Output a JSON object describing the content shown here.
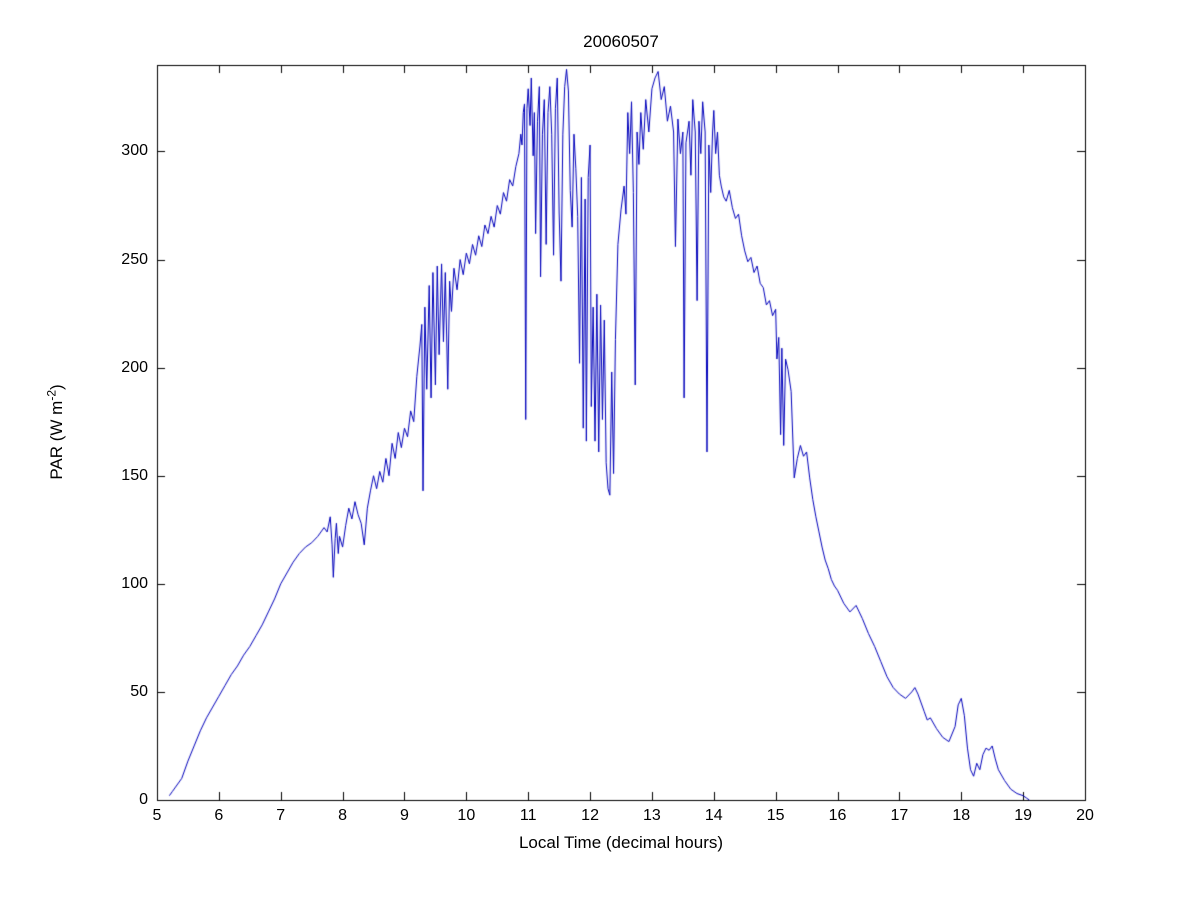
{
  "figure": {
    "title": "20060507",
    "xlabel": "Local Time (decimal hours)",
    "ylabel_pre": "PAR (W m",
    "ylabel_sup": "-2",
    "ylabel_post": ")"
  },
  "chart_data": {
    "type": "line",
    "title": "20060507",
    "xlabel": "Local Time (decimal hours)",
    "ylabel": "PAR (W m^-2)",
    "xlim": [
      5,
      20
    ],
    "ylim": [
      0,
      340
    ],
    "xticks": [
      5,
      6,
      7,
      8,
      9,
      10,
      11,
      12,
      13,
      14,
      15,
      16,
      17,
      18,
      19,
      20
    ],
    "yticks": [
      0,
      50,
      100,
      150,
      200,
      250,
      300
    ],
    "grid": false,
    "legend": false,
    "line_color": "#0000bb",
    "axis_color": "#000000",
    "background_color": "#ffffff",
    "series": [
      {
        "name": "PAR",
        "points": [
          [
            5.2,
            2
          ],
          [
            5.25,
            4
          ],
          [
            5.3,
            6
          ],
          [
            5.4,
            10
          ],
          [
            5.5,
            18
          ],
          [
            5.6,
            25
          ],
          [
            5.7,
            32
          ],
          [
            5.8,
            38
          ],
          [
            5.9,
            43
          ],
          [
            6.0,
            48
          ],
          [
            6.1,
            53
          ],
          [
            6.2,
            58
          ],
          [
            6.3,
            62
          ],
          [
            6.4,
            67
          ],
          [
            6.5,
            71
          ],
          [
            6.6,
            76
          ],
          [
            6.7,
            81
          ],
          [
            6.8,
            87
          ],
          [
            6.9,
            93
          ],
          [
            7.0,
            100
          ],
          [
            7.1,
            105
          ],
          [
            7.2,
            110
          ],
          [
            7.3,
            114
          ],
          [
            7.4,
            117
          ],
          [
            7.5,
            119
          ],
          [
            7.6,
            122
          ],
          [
            7.7,
            126
          ],
          [
            7.75,
            124
          ],
          [
            7.8,
            131
          ],
          [
            7.83,
            118
          ],
          [
            7.85,
            103
          ],
          [
            7.88,
            121
          ],
          [
            7.9,
            128
          ],
          [
            7.93,
            114
          ],
          [
            7.95,
            122
          ],
          [
            8.0,
            117
          ],
          [
            8.05,
            127
          ],
          [
            8.1,
            135
          ],
          [
            8.15,
            130
          ],
          [
            8.2,
            138
          ],
          [
            8.25,
            132
          ],
          [
            8.3,
            128
          ],
          [
            8.35,
            118
          ],
          [
            8.4,
            135
          ],
          [
            8.45,
            143
          ],
          [
            8.5,
            150
          ],
          [
            8.55,
            144
          ],
          [
            8.6,
            152
          ],
          [
            8.65,
            147
          ],
          [
            8.7,
            158
          ],
          [
            8.75,
            150
          ],
          [
            8.8,
            165
          ],
          [
            8.85,
            158
          ],
          [
            8.9,
            170
          ],
          [
            8.95,
            163
          ],
          [
            9.0,
            172
          ],
          [
            9.05,
            168
          ],
          [
            9.1,
            180
          ],
          [
            9.15,
            175
          ],
          [
            9.2,
            196
          ],
          [
            9.25,
            210
          ],
          [
            9.28,
            220
          ],
          [
            9.3,
            143
          ],
          [
            9.33,
            228
          ],
          [
            9.36,
            190
          ],
          [
            9.4,
            238
          ],
          [
            9.43,
            186
          ],
          [
            9.46,
            244
          ],
          [
            9.5,
            192
          ],
          [
            9.53,
            247
          ],
          [
            9.56,
            206
          ],
          [
            9.6,
            248
          ],
          [
            9.63,
            212
          ],
          [
            9.66,
            244
          ],
          [
            9.7,
            190
          ],
          [
            9.73,
            240
          ],
          [
            9.76,
            226
          ],
          [
            9.8,
            246
          ],
          [
            9.85,
            236
          ],
          [
            9.9,
            250
          ],
          [
            9.95,
            243
          ],
          [
            10.0,
            253
          ],
          [
            10.05,
            248
          ],
          [
            10.1,
            257
          ],
          [
            10.15,
            252
          ],
          [
            10.2,
            261
          ],
          [
            10.25,
            256
          ],
          [
            10.3,
            266
          ],
          [
            10.35,
            262
          ],
          [
            10.4,
            270
          ],
          [
            10.45,
            265
          ],
          [
            10.5,
            275
          ],
          [
            10.55,
            271
          ],
          [
            10.6,
            281
          ],
          [
            10.65,
            277
          ],
          [
            10.7,
            287
          ],
          [
            10.75,
            284
          ],
          [
            10.8,
            293
          ],
          [
            10.85,
            299
          ],
          [
            10.88,
            308
          ],
          [
            10.9,
            303
          ],
          [
            10.92,
            318
          ],
          [
            10.94,
            322
          ],
          [
            10.96,
            176
          ],
          [
            10.98,
            320
          ],
          [
            11.0,
            329
          ],
          [
            11.03,
            312
          ],
          [
            11.05,
            334
          ],
          [
            11.08,
            298
          ],
          [
            11.1,
            318
          ],
          [
            11.12,
            262
          ],
          [
            11.15,
            314
          ],
          [
            11.18,
            330
          ],
          [
            11.2,
            242
          ],
          [
            11.23,
            308
          ],
          [
            11.26,
            324
          ],
          [
            11.29,
            257
          ],
          [
            11.32,
            318
          ],
          [
            11.35,
            330
          ],
          [
            11.38,
            308
          ],
          [
            11.41,
            252
          ],
          [
            11.44,
            320
          ],
          [
            11.47,
            334
          ],
          [
            11.5,
            272
          ],
          [
            11.53,
            240
          ],
          [
            11.56,
            308
          ],
          [
            11.59,
            330
          ],
          [
            11.62,
            338
          ],
          [
            11.65,
            328
          ],
          [
            11.68,
            282
          ],
          [
            11.71,
            265
          ],
          [
            11.74,
            308
          ],
          [
            11.77,
            292
          ],
          [
            11.8,
            270
          ],
          [
            11.83,
            202
          ],
          [
            11.86,
            288
          ],
          [
            11.89,
            172
          ],
          [
            11.92,
            278
          ],
          [
            11.94,
            166
          ],
          [
            11.97,
            288
          ],
          [
            12.0,
            303
          ],
          [
            12.02,
            182
          ],
          [
            12.05,
            228
          ],
          [
            12.08,
            166
          ],
          [
            12.11,
            234
          ],
          [
            12.14,
            161
          ],
          [
            12.17,
            229
          ],
          [
            12.2,
            176
          ],
          [
            12.23,
            222
          ],
          [
            12.26,
            156
          ],
          [
            12.29,
            144
          ],
          [
            12.32,
            141
          ],
          [
            12.35,
            198
          ],
          [
            12.38,
            151
          ],
          [
            12.41,
            213
          ],
          [
            12.45,
            257
          ],
          [
            12.5,
            273
          ],
          [
            12.55,
            284
          ],
          [
            12.58,
            271
          ],
          [
            12.61,
            318
          ],
          [
            12.64,
            299
          ],
          [
            12.67,
            323
          ],
          [
            12.7,
            281
          ],
          [
            12.73,
            192
          ],
          [
            12.76,
            309
          ],
          [
            12.79,
            294
          ],
          [
            12.82,
            318
          ],
          [
            12.86,
            301
          ],
          [
            12.9,
            324
          ],
          [
            12.95,
            309
          ],
          [
            13.0,
            329
          ],
          [
            13.05,
            334
          ],
          [
            13.1,
            337
          ],
          [
            13.15,
            324
          ],
          [
            13.2,
            330
          ],
          [
            13.25,
            314
          ],
          [
            13.3,
            321
          ],
          [
            13.35,
            309
          ],
          [
            13.38,
            256
          ],
          [
            13.42,
            315
          ],
          [
            13.46,
            299
          ],
          [
            13.5,
            309
          ],
          [
            13.52,
            186
          ],
          [
            13.55,
            304
          ],
          [
            13.6,
            314
          ],
          [
            13.63,
            289
          ],
          [
            13.66,
            324
          ],
          [
            13.7,
            309
          ],
          [
            13.73,
            231
          ],
          [
            13.76,
            314
          ],
          [
            13.79,
            299
          ],
          [
            13.82,
            323
          ],
          [
            13.86,
            309
          ],
          [
            13.89,
            161
          ],
          [
            13.92,
            303
          ],
          [
            13.95,
            281
          ],
          [
            13.98,
            309
          ],
          [
            14.0,
            319
          ],
          [
            14.03,
            299
          ],
          [
            14.06,
            309
          ],
          [
            14.09,
            289
          ],
          [
            14.12,
            284
          ],
          [
            14.16,
            279
          ],
          [
            14.2,
            277
          ],
          [
            14.25,
            282
          ],
          [
            14.3,
            274
          ],
          [
            14.35,
            269
          ],
          [
            14.4,
            271
          ],
          [
            14.45,
            261
          ],
          [
            14.5,
            254
          ],
          [
            14.55,
            249
          ],
          [
            14.6,
            251
          ],
          [
            14.65,
            244
          ],
          [
            14.7,
            247
          ],
          [
            14.75,
            239
          ],
          [
            14.8,
            237
          ],
          [
            14.85,
            229
          ],
          [
            14.9,
            231
          ],
          [
            14.95,
            224
          ],
          [
            15.0,
            227
          ],
          [
            15.02,
            204
          ],
          [
            15.05,
            214
          ],
          [
            15.08,
            169
          ],
          [
            15.1,
            209
          ],
          [
            15.13,
            164
          ],
          [
            15.16,
            204
          ],
          [
            15.2,
            199
          ],
          [
            15.25,
            189
          ],
          [
            15.3,
            149
          ],
          [
            15.35,
            158
          ],
          [
            15.4,
            164
          ],
          [
            15.45,
            159
          ],
          [
            15.5,
            161
          ],
          [
            15.55,
            149
          ],
          [
            15.6,
            139
          ],
          [
            15.65,
            131
          ],
          [
            15.7,
            124
          ],
          [
            15.75,
            117
          ],
          [
            15.8,
            111
          ],
          [
            15.85,
            107
          ],
          [
            15.9,
            102
          ],
          [
            15.95,
            99
          ],
          [
            16.0,
            97
          ],
          [
            16.1,
            91
          ],
          [
            16.2,
            87
          ],
          [
            16.3,
            90
          ],
          [
            16.35,
            87
          ],
          [
            16.4,
            84
          ],
          [
            16.5,
            77
          ],
          [
            16.6,
            71
          ],
          [
            16.7,
            64
          ],
          [
            16.8,
            57
          ],
          [
            16.9,
            52
          ],
          [
            17.0,
            49
          ],
          [
            17.1,
            47
          ],
          [
            17.2,
            50
          ],
          [
            17.25,
            52
          ],
          [
            17.3,
            49
          ],
          [
            17.4,
            41
          ],
          [
            17.45,
            37
          ],
          [
            17.5,
            38
          ],
          [
            17.6,
            33
          ],
          [
            17.7,
            29
          ],
          [
            17.8,
            27
          ],
          [
            17.9,
            34
          ],
          [
            17.95,
            44
          ],
          [
            18.0,
            47
          ],
          [
            18.05,
            39
          ],
          [
            18.1,
            24
          ],
          [
            18.15,
            14
          ],
          [
            18.2,
            11
          ],
          [
            18.25,
            17
          ],
          [
            18.3,
            14
          ],
          [
            18.35,
            21
          ],
          [
            18.4,
            24
          ],
          [
            18.45,
            23
          ],
          [
            18.5,
            25
          ],
          [
            18.55,
            19
          ],
          [
            18.6,
            14
          ],
          [
            18.7,
            9
          ],
          [
            18.8,
            5
          ],
          [
            18.9,
            3
          ],
          [
            19.0,
            2
          ],
          [
            19.05,
            1
          ],
          [
            19.1,
            0
          ]
        ]
      }
    ]
  }
}
